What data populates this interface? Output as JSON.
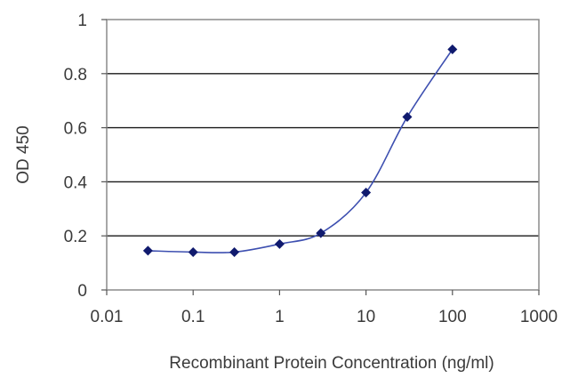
{
  "chart_data": {
    "type": "line",
    "title": "",
    "xlabel": "Recombinant Protein Concentration (ng/ml)",
    "ylabel": "OD 450",
    "x_scale": "log10",
    "xlim": [
      0.01,
      1000
    ],
    "ylim": [
      0,
      1
    ],
    "x_ticks": [
      0.01,
      0.1,
      1,
      10,
      100,
      1000
    ],
    "x_tick_labels": [
      "0.01",
      "0.1",
      "1",
      "10",
      "100",
      "1000"
    ],
    "y_ticks": [
      0,
      0.2,
      0.4,
      0.6,
      0.8,
      1
    ],
    "y_tick_labels": [
      "0",
      "0.2",
      "0.4",
      "0.6",
      "0.8",
      "1"
    ],
    "grid": "horizontal",
    "legend": "none",
    "series": [
      {
        "x": [
          0.03,
          0.1,
          0.3,
          1,
          3,
          10,
          30,
          100
        ],
        "y": [
          0.145,
          0.14,
          0.14,
          0.17,
          0.21,
          0.36,
          0.64,
          0.89
        ],
        "color": "#3d4fb0",
        "marker_color": "#101a6e",
        "marker": "diamond"
      }
    ]
  }
}
